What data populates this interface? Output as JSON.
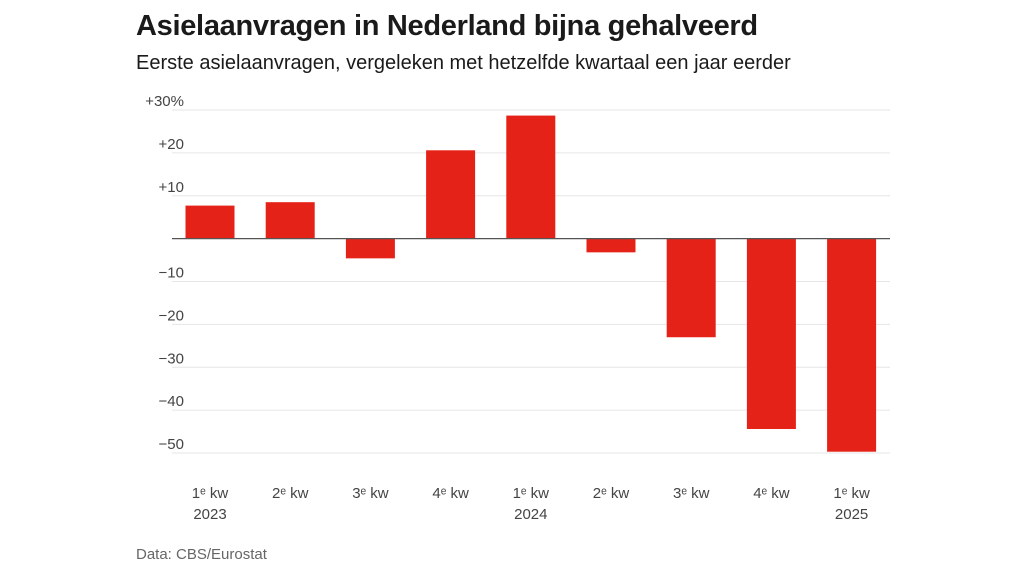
{
  "header": {
    "title": "Asielaanvragen in Nederland bijna gehalveerd",
    "subtitle": "Eerste asielaanvragen, vergeleken met hetzelfde kwartaal een jaar eerder"
  },
  "footer": {
    "source": "Data: CBS/Eurostat"
  },
  "colors": {
    "bar": "#e52217",
    "grid": "#e6e6e6",
    "zero_line": "#555555",
    "tick_text": "#444444"
  },
  "chart_data": {
    "type": "bar",
    "title": "Asielaanvragen in Nederland bijna gehalveerd",
    "subtitle": "Eerste asielaanvragen, vergeleken met hetzelfde kwartaal een jaar eerder",
    "xlabel": "",
    "ylabel": "",
    "unit": "%",
    "categories": [
      [
        "1ᵉ kw",
        "2023"
      ],
      [
        "2ᵉ kw",
        ""
      ],
      [
        "3ᵉ kw",
        ""
      ],
      [
        "4ᵉ kw",
        ""
      ],
      [
        "1ᵉ kw",
        "2024"
      ],
      [
        "2ᵉ kw",
        ""
      ],
      [
        "3ᵉ kw",
        ""
      ],
      [
        "4ᵉ kw",
        ""
      ],
      [
        "1ᵉ kw",
        "2025"
      ]
    ],
    "values": [
      7.7,
      8.5,
      -4.6,
      20.6,
      28.7,
      -3.2,
      -23.0,
      -44.4,
      -49.7
    ],
    "ylim": [
      -50,
      30
    ],
    "yticks": [
      30,
      20,
      10,
      -10,
      -20,
      -30,
      -40,
      -50
    ],
    "ytick_labels": [
      "+30%",
      "+20",
      "+10",
      "−10",
      "−20",
      "−30",
      "−40",
      "−50"
    ],
    "grid": true,
    "legend": "none"
  }
}
